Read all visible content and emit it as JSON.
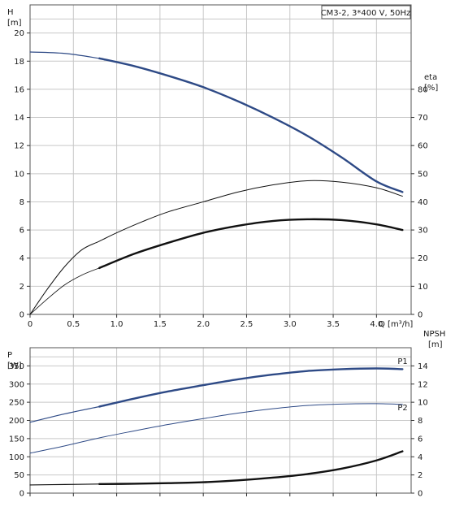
{
  "chart_data": [
    {
      "type": "line",
      "title": "CM3-2, 3*400 V, 50Hz",
      "xlabel": "Q [m³/h]",
      "ylabel_left_name": "H",
      "ylabel_left_unit": "[m]",
      "ylabel_right_name": "eta",
      "ylabel_right_unit": "[%]",
      "xlim": [
        0,
        4.4
      ],
      "ylim_left": [
        0,
        22
      ],
      "ylim_right": [
        0,
        110
      ],
      "x_ticks": [
        "0",
        "0.5",
        "1.0",
        "1.5",
        "2.0",
        "2.5",
        "3.0",
        "3.5",
        "4.0"
      ],
      "x_tick_values": [
        0,
        0.5,
        1.0,
        1.5,
        2.0,
        2.5,
        3.0,
        3.5,
        4.0
      ],
      "y_left_ticks": [
        "0",
        "2",
        "4",
        "6",
        "8",
        "10",
        "12",
        "14",
        "16",
        "18",
        "20"
      ],
      "y_left_tick_values": [
        0,
        2,
        4,
        6,
        8,
        10,
        12,
        14,
        16,
        18,
        20
      ],
      "y_right_ticks": [
        "0",
        "10",
        "20",
        "30",
        "40",
        "50",
        "60",
        "70",
        "80"
      ],
      "y_right_tick_values": [
        0,
        10,
        20,
        30,
        40,
        50,
        60,
        70,
        80
      ],
      "grid": true,
      "series": [
        {
          "axis": "left",
          "color": "#2e4a86",
          "width": 1.2,
          "x": [
            0,
            0.4,
            0.8
          ],
          "y": [
            18.65,
            18.55,
            18.2
          ]
        },
        {
          "axis": "left",
          "color": "#2e4a86",
          "width": 2.4,
          "x": [
            0.8,
            1.2,
            1.6,
            2.0,
            2.4,
            2.8,
            3.2,
            3.6,
            4.0,
            4.3
          ],
          "y": [
            18.2,
            17.65,
            16.95,
            16.15,
            15.15,
            14.0,
            12.7,
            11.15,
            9.45,
            8.7
          ]
        },
        {
          "axis": "right",
          "color": "#111111",
          "width": 1.0,
          "x": [
            0,
            0.2,
            0.4,
            0.6,
            0.8,
            1.0,
            1.3,
            1.6,
            2.0,
            2.4,
            2.8,
            3.2,
            3.6,
            4.0,
            4.3
          ],
          "y": [
            0,
            9,
            17,
            23,
            26,
            29,
            33,
            36.5,
            40,
            43.5,
            46,
            47.5,
            47,
            45,
            42
          ]
        },
        {
          "axis": "right",
          "color": "#111111",
          "width": 0.8,
          "x": [
            0,
            0.2,
            0.4,
            0.6,
            0.8
          ],
          "y": [
            0,
            5.5,
            10.5,
            14,
            16.5
          ]
        },
        {
          "axis": "right",
          "color": "#111111",
          "width": 2.4,
          "x": [
            0.8,
            1.2,
            1.6,
            2.0,
            2.4,
            2.8,
            3.2,
            3.6,
            4.0,
            4.3
          ],
          "y": [
            16.5,
            21.5,
            25.5,
            29,
            31.5,
            33.2,
            33.8,
            33.5,
            32,
            30
          ]
        }
      ]
    },
    {
      "type": "line",
      "xlabel": "",
      "ylabel_left_name": "P",
      "ylabel_left_unit": "[W]",
      "ylabel_right_name": "NPSH",
      "ylabel_right_unit": "[m]",
      "xlim": [
        0,
        4.4
      ],
      "ylim_left": [
        0,
        400
      ],
      "ylim_right": [
        0,
        16
      ],
      "y_left_ticks": [
        "0",
        "50",
        "100",
        "150",
        "200",
        "250",
        "300",
        "350"
      ],
      "y_left_tick_values": [
        0,
        50,
        100,
        150,
        200,
        250,
        300,
        350
      ],
      "y_right_ticks": [
        "0",
        "2",
        "4",
        "6",
        "8",
        "10",
        "12",
        "14"
      ],
      "y_right_tick_values": [
        0,
        2,
        4,
        6,
        8,
        10,
        12,
        14
      ],
      "grid": true,
      "series": [
        {
          "name": "P1",
          "axis": "left",
          "color": "#2e4a86",
          "width": 1.2,
          "x": [
            0,
            0.4,
            0.8
          ],
          "y": [
            195,
            218,
            238
          ]
        },
        {
          "name": "P1",
          "axis": "left",
          "color": "#2e4a86",
          "width": 2.4,
          "x": [
            0.8,
            1.2,
            1.6,
            2.0,
            2.4,
            2.8,
            3.2,
            3.6,
            4.0,
            4.3
          ],
          "y": [
            238,
            260,
            280,
            297,
            313,
            326,
            336,
            341,
            343,
            341
          ]
        },
        {
          "name": "P2",
          "axis": "left",
          "color": "#2e4a86",
          "width": 1.0,
          "x": [
            0,
            0.4,
            0.8,
            1.2,
            1.6,
            2.0,
            2.4,
            2.8,
            3.2,
            3.6,
            4.0,
            4.3
          ],
          "y": [
            110,
            130,
            152,
            171,
            189,
            205,
            220,
            232,
            241,
            245,
            246,
            244
          ]
        },
        {
          "axis": "right",
          "color": "#111111",
          "width": 1.2,
          "x": [
            0,
            0.4,
            0.8
          ],
          "y": [
            0.9,
            0.95,
            1.0
          ]
        },
        {
          "axis": "right",
          "color": "#111111",
          "width": 2.4,
          "x": [
            0.8,
            1.2,
            1.6,
            2.0,
            2.4,
            2.8,
            3.2,
            3.6,
            4.0,
            4.3
          ],
          "y": [
            1.0,
            1.03,
            1.1,
            1.2,
            1.4,
            1.7,
            2.1,
            2.7,
            3.6,
            4.6
          ]
        }
      ],
      "annotations": [
        {
          "text": "P1",
          "x": 4.3,
          "y": 355,
          "axis": "left"
        },
        {
          "text": "P2",
          "x": 4.3,
          "y": 228,
          "axis": "left"
        }
      ]
    }
  ]
}
